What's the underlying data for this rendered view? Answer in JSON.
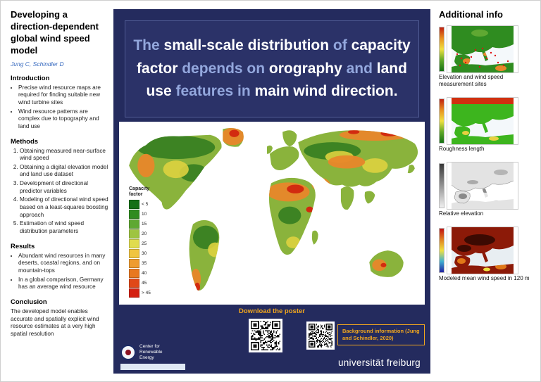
{
  "colors": {
    "navy": "#242b5e",
    "accent_blue": "#93a7dd",
    "orange": "#f2a71e",
    "author_blue": "#3a6cc0",
    "land_base": "#8ab33c",
    "land_green": "#2f7a1e",
    "land_yellow": "#ddd23f",
    "land_orange": "#e8872a",
    "land_red": "#d22b10"
  },
  "left": {
    "title": "Developing a direction-dependent global wind speed model",
    "authors": "Jung C, Schindler D",
    "intro_heading": "Introduction",
    "intro_bullets": [
      "Precise wind resource maps are required for finding suitable new wind turbine sites",
      "Wind resource patterns are complex due to topography and land use"
    ],
    "methods_heading": "Methods",
    "methods_steps": [
      "Obtaining measured near-surface wind speed",
      "Obtaining a digital elevation model and land use dataset",
      "Development of directional predictor variables",
      "Modeling of directional wind speed based on a least-squares boosting approach",
      "Estimation of wind speed distribution parameters"
    ],
    "results_heading": "Results",
    "results_bullets": [
      "Abundant wind resources in many deserts, coastal regions, and on mountain-tops",
      "In a global comparison, Germany has an average wind resource"
    ],
    "conclusion_heading": "Conclusion",
    "conclusion_text": "The developed model enables accurate and spatially explicit wind resource estimates at a very high spatial resolution"
  },
  "poster": {
    "headline": {
      "segments": [
        {
          "text": "The "
        },
        {
          "text": "small-scale distribution "
        },
        {
          "text": "of "
        },
        {
          "text": "capacity factor "
        },
        {
          "text": "depends on "
        },
        {
          "text": "orography "
        },
        {
          "text": "and "
        },
        {
          "text": "land use "
        },
        {
          "text": "features in "
        },
        {
          "text": "main wind direction."
        }
      ]
    },
    "legend": {
      "title": "Capacity factor",
      "entries": [
        {
          "label": "< 5",
          "color": "#157015"
        },
        {
          "label": "10",
          "color": "#2f8c1f"
        },
        {
          "label": "15",
          "color": "#5fa832"
        },
        {
          "label": "20",
          "color": "#9ec441"
        },
        {
          "label": "25",
          "color": "#e0dc4e"
        },
        {
          "label": "30",
          "color": "#f0c440"
        },
        {
          "label": "35",
          "color": "#ee9c30"
        },
        {
          "label": "40",
          "color": "#e87820"
        },
        {
          "label": "45",
          "color": "#e04818"
        },
        {
          "label": "> 45",
          "color": "#d42010"
        }
      ]
    },
    "download_label": "Download the poster",
    "background_info": "Background information (Jung and Schindler, 2020)",
    "logo": {
      "org": "Center for Renewable Energy"
    },
    "university": "universität freiburg"
  },
  "right": {
    "heading": "Additional info",
    "maps": [
      {
        "caption": "Elevation and wind speed measurement sites"
      },
      {
        "caption": "Roughness length"
      },
      {
        "caption": "Relative elevation"
      },
      {
        "caption": "Modeled mean wind speed in 120 m"
      }
    ]
  }
}
